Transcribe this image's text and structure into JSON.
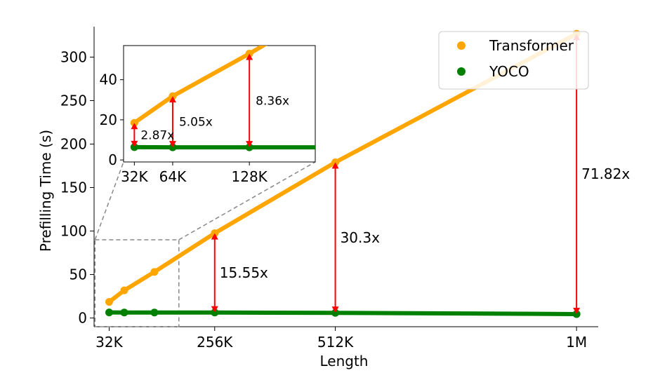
{
  "chart_data": {
    "type": "line",
    "title": "",
    "xlabel": "Length",
    "ylabel": "Prefilling Time (s)",
    "xticks": [
      {
        "value": 32,
        "label": "32K"
      },
      {
        "value": 256,
        "label": "256K"
      },
      {
        "value": 512,
        "label": "512K"
      },
      {
        "value": 1024,
        "label": "1M"
      }
    ],
    "yticks": [
      0,
      50,
      100,
      150,
      200,
      250,
      300
    ],
    "xlim": [
      0,
      1070
    ],
    "ylim": [
      -10,
      335
    ],
    "legend_position": "top-right",
    "grid": false,
    "series": [
      {
        "name": "Transformer",
        "color": "#ffa500",
        "x": [
          32,
          64,
          128,
          256,
          512,
          1024
        ],
        "y": [
          18.5,
          31.8,
          53.0,
          97.5,
          179.0,
          326.8
        ]
      },
      {
        "name": "YOCO",
        "color": "#008000",
        "x": [
          32,
          64,
          128,
          256,
          512,
          1024
        ],
        "y": [
          6.4,
          6.3,
          6.3,
          6.3,
          5.9,
          4.55
        ]
      }
    ],
    "annotations": [
      {
        "x": 256,
        "label": "15.55x"
      },
      {
        "x": 512,
        "label": "30.3x"
      },
      {
        "x": 1024,
        "label": "71.82x"
      }
    ],
    "annotation_color": "#ff0000",
    "zoom_region": {
      "x": [
        2,
        180
      ],
      "y": [
        -10,
        90
      ]
    },
    "inset": {
      "type": "line",
      "xticks": [
        {
          "value": 32,
          "label": "32K"
        },
        {
          "value": 64,
          "label": "64K"
        },
        {
          "value": 128,
          "label": "128K"
        }
      ],
      "yticks": [
        0,
        20,
        40
      ],
      "xlim": [
        23,
        183
      ],
      "ylim": [
        -1,
        57
      ],
      "annotations": [
        {
          "x": 32,
          "label": "2.87x"
        },
        {
          "x": 64,
          "label": "5.05x"
        },
        {
          "x": 128,
          "label": "8.36x"
        }
      ]
    }
  }
}
